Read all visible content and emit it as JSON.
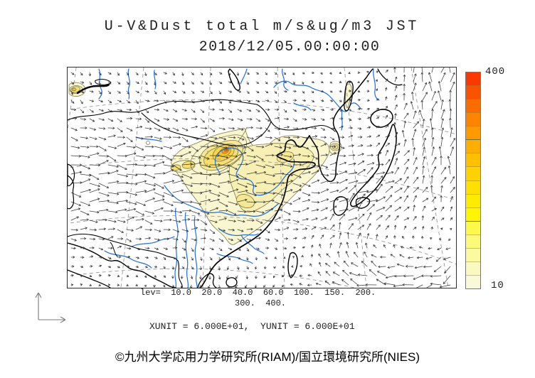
{
  "title": {
    "line1": "U-V&Dust total m/s&ug/m3 JST",
    "line2": "2018/12/05.00:00:00"
  },
  "colorbar": {
    "max_label": "400",
    "min_label": "10",
    "colors_top_to_bottom": [
      "#F93900",
      "#FA5300",
      "#FB6C00",
      "#FC8400",
      "#FD9A00",
      "#FEAE00",
      "#FEC000",
      "#FED100",
      "#FEDF00",
      "#FEEB00",
      "#FEF600",
      "#FDF94B",
      "#FCFA78",
      "#FBFA9E",
      "#FAFAC0",
      "#F9F8D8"
    ],
    "heavy_divider_after_indices": [
      4,
      10
    ]
  },
  "legend": {
    "lev_line1": "lev=  10.0  20.0  40.0  60.0  100.  150.  200.",
    "lev_line2": "300.  400.",
    "units_line": "XUNIT = 6.000E+01,  YUNIT = 6.000E+01"
  },
  "footer": {
    "credit": "©九州大学応用力学研究所(RIAM)/国立環境研究所(NIES)"
  },
  "map": {
    "colors": {
      "coast": "#000000",
      "border": "#1c1c1c",
      "river": "#1D6EE0",
      "graticule": "#999999",
      "arrow": "#2E2E2E",
      "contour": "#7D7A4C"
    },
    "dust_fill_colors": {
      "10": "#FAF6CF",
      "20": "#F8F0B2",
      "40": "#F6E893",
      "60": "#F8E06B",
      "100": "#FAD348",
      "150": "#FBBF2A",
      "200": "#F9A011",
      "300": "#F4700A",
      "400": "#EE3A05"
    }
  },
  "chart_data": {
    "type": "map",
    "map_type": "wind-vector + dust-concentration contour forecast map of East Asia",
    "variables": "U-V wind (m/s) & total dust (ug/m3)",
    "valid_time": "2018/12/05.00:00:00 JST",
    "contour_levels_ugm3": [
      10.0,
      20.0,
      40.0,
      60.0,
      100,
      150,
      200,
      300,
      400
    ],
    "colorbar_range": [
      10,
      400
    ],
    "vector_scale": {
      "xunit": "6.000E+01",
      "yunit": "6.000E+01"
    }
  }
}
